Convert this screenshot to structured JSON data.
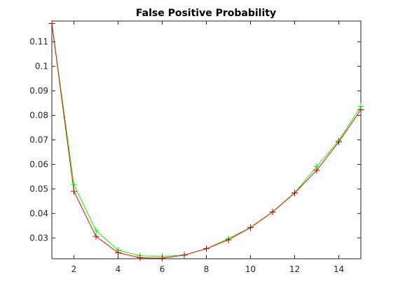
{
  "chart_data": {
    "type": "line",
    "title": "False Positive Probability",
    "xlabel": "",
    "ylabel": "",
    "xlim": [
      1,
      15
    ],
    "ylim": [
      0.0215,
      0.1185
    ],
    "xticks": [
      2,
      4,
      6,
      8,
      10,
      12,
      14
    ],
    "xtick_labels": [
      "2",
      "4",
      "6",
      "8",
      "10",
      "12",
      "14"
    ],
    "yticks": [
      0.03,
      0.04,
      0.05,
      0.06,
      0.07,
      0.08,
      0.09,
      0.1,
      0.11
    ],
    "ytick_labels": [
      "0.03",
      "0.04",
      "0.05",
      "0.06",
      "0.07",
      "0.08",
      "0.09",
      "0.1",
      "0.11"
    ],
    "grid": false,
    "legend": "none",
    "x": [
      1,
      2,
      3,
      4,
      5,
      6,
      7,
      8,
      9,
      10,
      11,
      12,
      13,
      14,
      15
    ],
    "series": [
      {
        "color": "#00ff00",
        "marker": "+",
        "values": [
          0.1175,
          0.0518,
          0.033,
          0.025,
          0.0227,
          0.0224,
          0.023,
          0.0256,
          0.0297,
          0.0343,
          0.0406,
          0.0484,
          0.0591,
          0.0697,
          0.0837
        ]
      },
      {
        "color": "#ff0000",
        "marker": "+",
        "values": [
          0.1175,
          0.049,
          0.0306,
          0.024,
          0.0219,
          0.0217,
          0.023,
          0.0256,
          0.0292,
          0.0342,
          0.0406,
          0.0483,
          0.0576,
          0.0692,
          0.0823
        ]
      }
    ],
    "series_marker_color": "#b00000"
  }
}
